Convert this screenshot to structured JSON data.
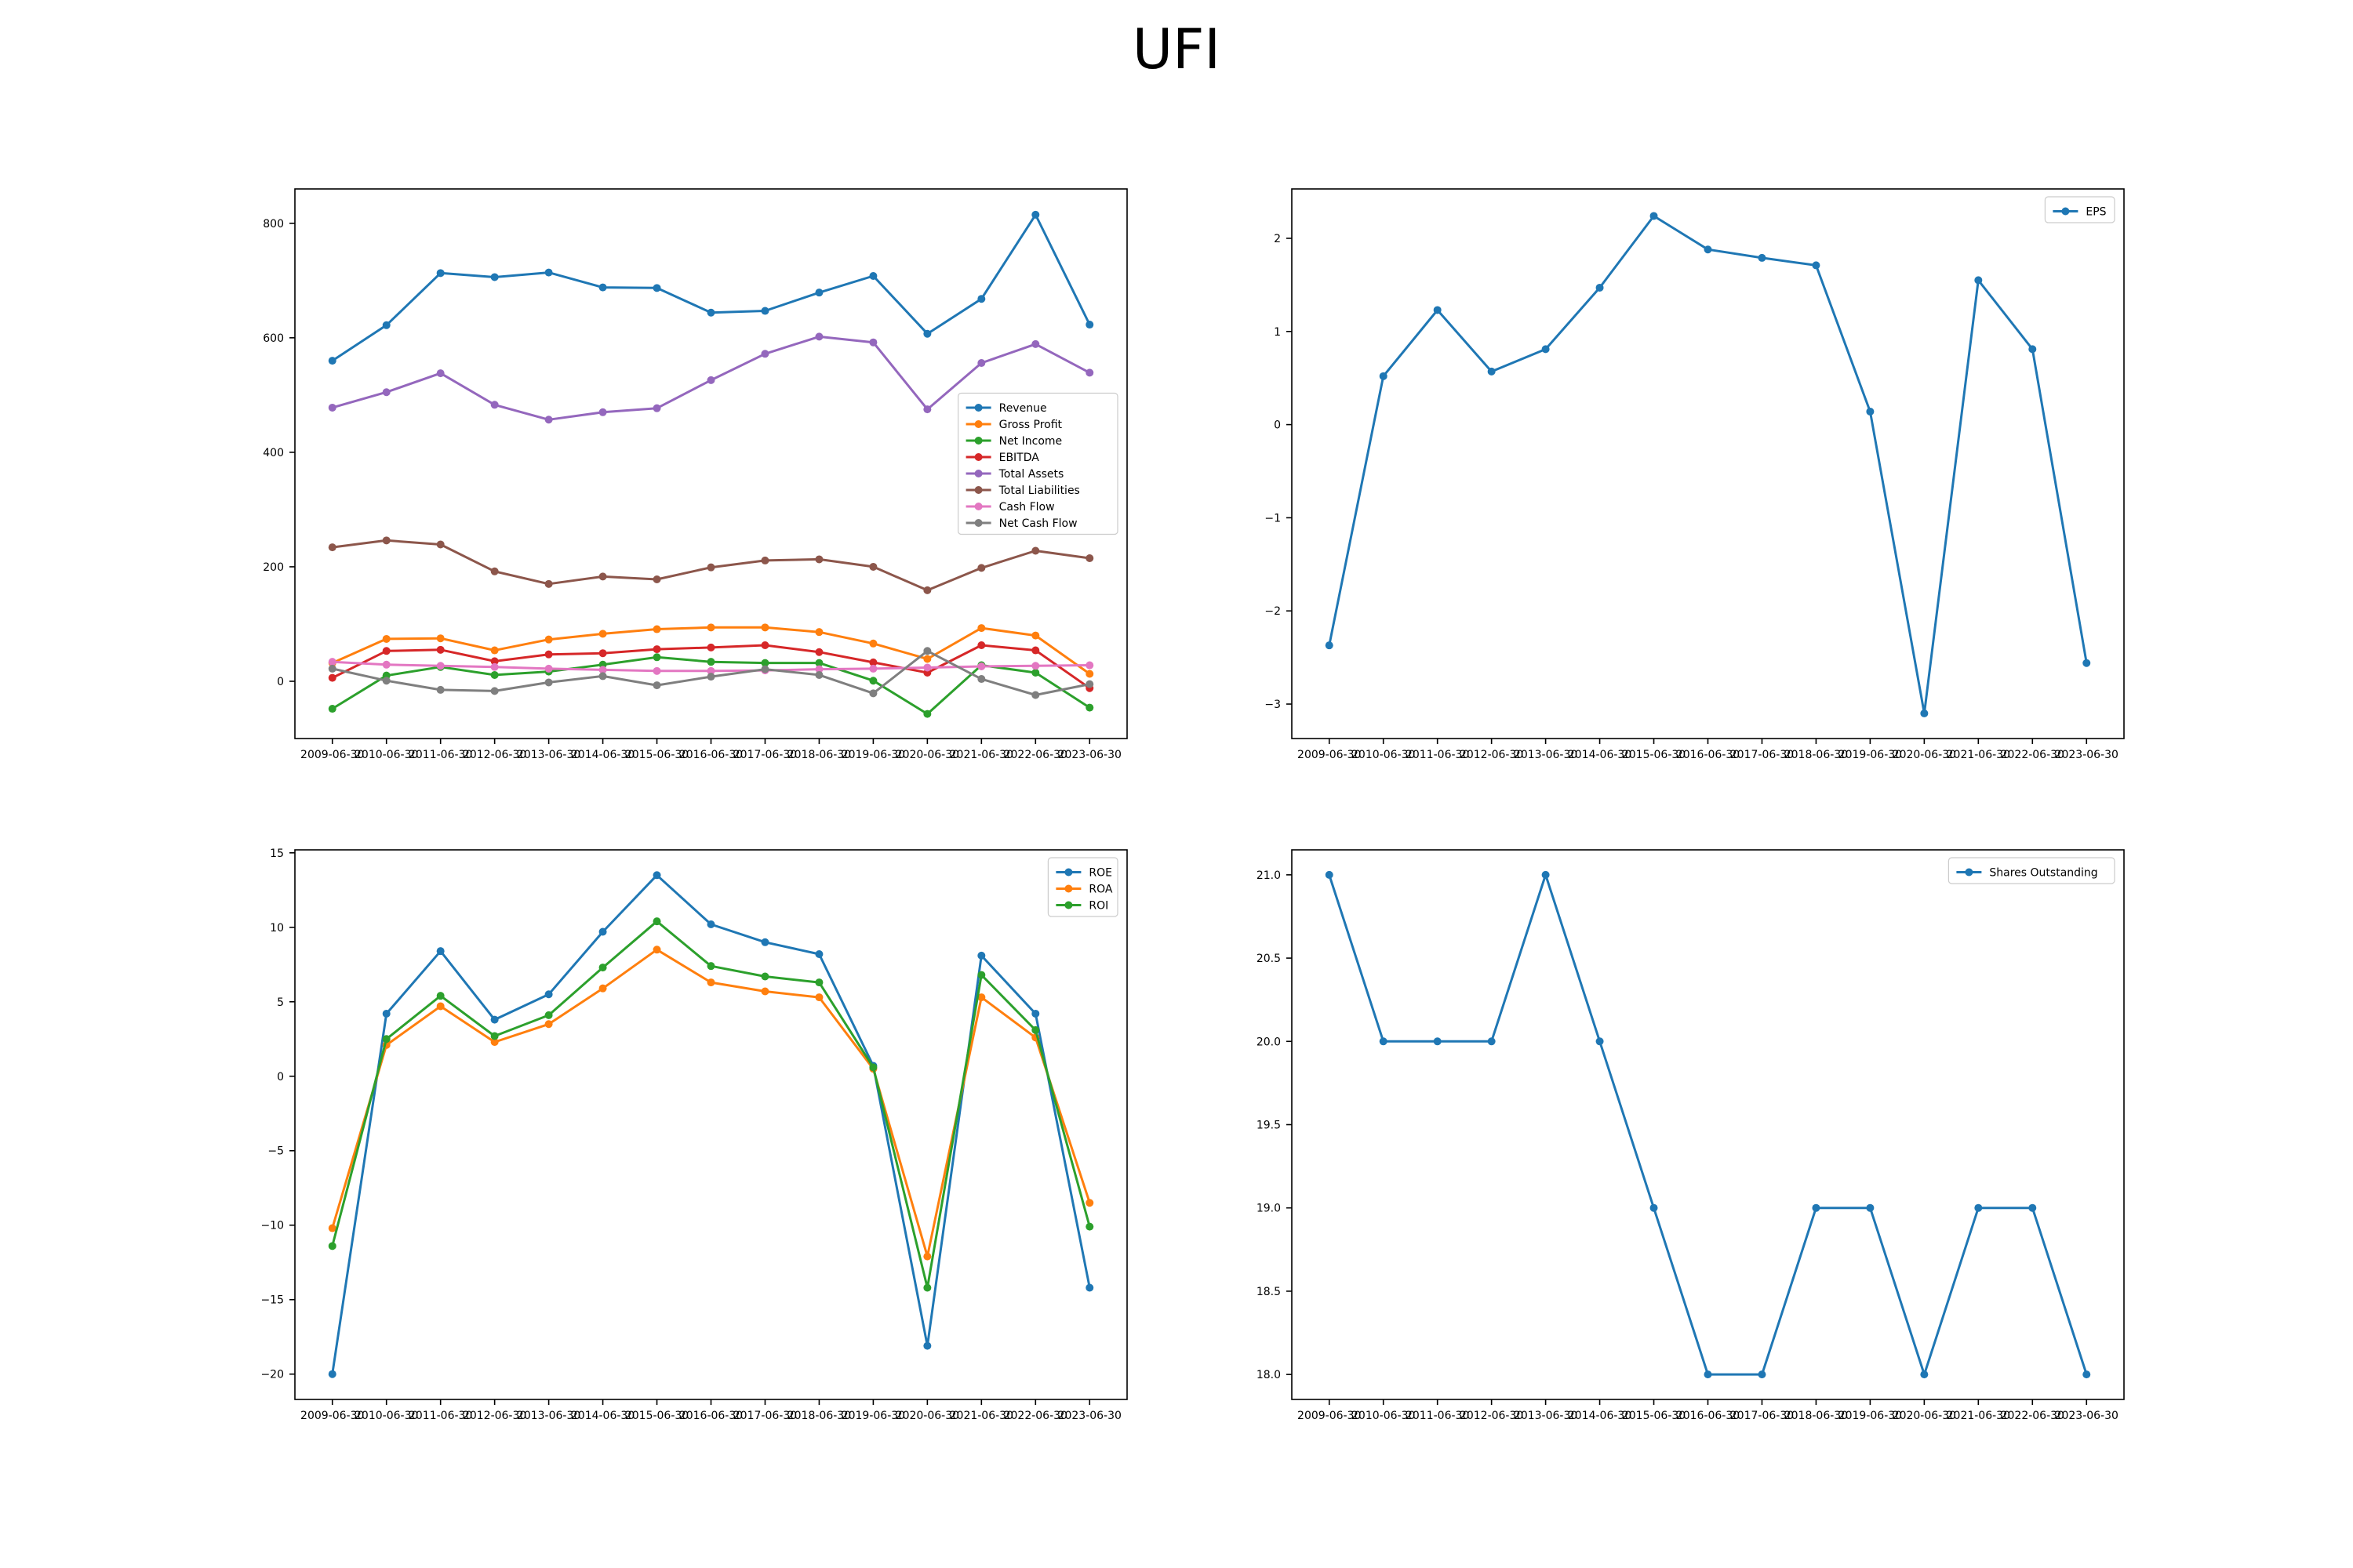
{
  "title": "UFI",
  "colors": {
    "blue": "#1f77b4",
    "orange": "#ff7f0e",
    "green": "#2ca02c",
    "red": "#d62728",
    "purple": "#9467bd",
    "brown": "#8c564b",
    "pink": "#e377c2",
    "gray": "#7f7f7f"
  },
  "chart_data": [
    {
      "type": "line",
      "x": [
        "2009-06-30",
        "2010-06-30",
        "2011-06-30",
        "2012-06-30",
        "2013-06-30",
        "2014-06-30",
        "2015-06-30",
        "2016-06-30",
        "2017-06-30",
        "2018-06-30",
        "2019-06-30",
        "2020-06-30",
        "2021-06-30",
        "2022-06-30",
        "2023-06-30"
      ],
      "ylim": [
        -100,
        860
      ],
      "yticks": [
        0,
        200,
        400,
        600,
        800
      ],
      "legend": "center-right",
      "grid": false,
      "series": [
        {
          "name": "Revenue",
          "color": "#1f77b4",
          "values": [
            560,
            622,
            713,
            706,
            714,
            688,
            687,
            644,
            647,
            679,
            708,
            607,
            668,
            815,
            623
          ]
        },
        {
          "name": "Gross Profit",
          "color": "#ff7f0e",
          "values": [
            32,
            74,
            75,
            54,
            73,
            83,
            91,
            94,
            94,
            86,
            66,
            39,
            93,
            80,
            13
          ]
        },
        {
          "name": "Net Income",
          "color": "#2ca02c",
          "values": [
            -48,
            10,
            25,
            11,
            17,
            29,
            42,
            34,
            32,
            32,
            1,
            -57,
            28,
            15,
            -46
          ]
        },
        {
          "name": "EBITDA",
          "color": "#d62728",
          "values": [
            6,
            53,
            55,
            35,
            47,
            49,
            56,
            59,
            63,
            51,
            33,
            15,
            63,
            54,
            -12
          ]
        },
        {
          "name": "Total Assets",
          "color": "#9467bd",
          "values": [
            478,
            505,
            538,
            483,
            457,
            470,
            477,
            526,
            572,
            602,
            592,
            475,
            556,
            589,
            539
          ]
        },
        {
          "name": "Total Liabilities",
          "color": "#8c564b",
          "values": [
            234,
            246,
            239,
            192,
            170,
            183,
            178,
            199,
            211,
            213,
            200,
            159,
            198,
            228,
            215
          ]
        },
        {
          "name": "Cash Flow",
          "color": "#e377c2",
          "values": [
            34,
            29,
            27,
            25,
            22,
            20,
            18,
            18,
            19,
            21,
            22,
            24,
            26,
            27,
            28
          ]
        },
        {
          "name": "Net Cash Flow",
          "color": "#7f7f7f",
          "values": [
            22,
            1,
            -15,
            -17,
            -2,
            9,
            -7,
            8,
            21,
            11,
            -21,
            53,
            4,
            -24,
            -5
          ]
        }
      ]
    },
    {
      "type": "line",
      "x": [
        "2009-06-30",
        "2010-06-30",
        "2011-06-30",
        "2012-06-30",
        "2013-06-30",
        "2014-06-30",
        "2015-06-30",
        "2016-06-30",
        "2017-06-30",
        "2018-06-30",
        "2019-06-30",
        "2020-06-30",
        "2021-06-30",
        "2022-06-30",
        "2023-06-30"
      ],
      "ylim": [
        -3.37,
        2.53
      ],
      "yticks": [
        -3,
        -2,
        -1,
        0,
        1,
        2
      ],
      "legend": "top-right",
      "grid": false,
      "series": [
        {
          "name": "EPS",
          "color": "#1f77b4",
          "values": [
            -2.37,
            0.52,
            1.23,
            0.57,
            0.81,
            1.47,
            2.24,
            1.88,
            1.79,
            1.71,
            0.14,
            -3.1,
            1.55,
            0.81,
            -2.56
          ]
        }
      ]
    },
    {
      "type": "line",
      "x": [
        "2009-06-30",
        "2010-06-30",
        "2011-06-30",
        "2012-06-30",
        "2013-06-30",
        "2014-06-30",
        "2015-06-30",
        "2016-06-30",
        "2017-06-30",
        "2018-06-30",
        "2019-06-30",
        "2020-06-30",
        "2021-06-30",
        "2022-06-30",
        "2023-06-30"
      ],
      "ylim": [
        -21.7,
        15.2
      ],
      "yticks": [
        -20,
        -15,
        -10,
        -5,
        0,
        5,
        10,
        15
      ],
      "legend": "top-right",
      "grid": false,
      "series": [
        {
          "name": "ROE",
          "color": "#1f77b4",
          "values": [
            -20.0,
            4.2,
            8.4,
            3.8,
            5.5,
            9.7,
            13.5,
            10.2,
            9.0,
            8.2,
            0.7,
            -18.1,
            8.1,
            4.2,
            -14.2
          ]
        },
        {
          "name": "ROA",
          "color": "#ff7f0e",
          "values": [
            -10.2,
            2.1,
            4.7,
            2.3,
            3.5,
            5.9,
            8.5,
            6.3,
            5.7,
            5.3,
            0.5,
            -12.1,
            5.3,
            2.6,
            -8.5
          ]
        },
        {
          "name": "ROI",
          "color": "#2ca02c",
          "values": [
            -11.4,
            2.5,
            5.4,
            2.7,
            4.1,
            7.3,
            10.4,
            7.4,
            6.7,
            6.3,
            0.6,
            -14.2,
            6.8,
            3.1,
            -10.1
          ]
        }
      ]
    },
    {
      "type": "line",
      "x": [
        "2009-06-30",
        "2010-06-30",
        "2011-06-30",
        "2012-06-30",
        "2013-06-30",
        "2014-06-30",
        "2015-06-30",
        "2016-06-30",
        "2017-06-30",
        "2018-06-30",
        "2019-06-30",
        "2020-06-30",
        "2021-06-30",
        "2022-06-30",
        "2023-06-30"
      ],
      "ylim": [
        17.85,
        21.15
      ],
      "yticks": [
        18.0,
        18.5,
        19.0,
        19.5,
        20.0,
        20.5,
        21.0
      ],
      "ytick_labels": [
        "18.0",
        "18.5",
        "19.0",
        "19.5",
        "20.0",
        "20.5",
        "21.0"
      ],
      "legend": "top-right",
      "grid": false,
      "series": [
        {
          "name": "Shares Outstanding",
          "color": "#1f77b4",
          "values": [
            21,
            20,
            20,
            20,
            21,
            20,
            19,
            18,
            18,
            19,
            19,
            18,
            19,
            19,
            18
          ]
        }
      ]
    }
  ]
}
